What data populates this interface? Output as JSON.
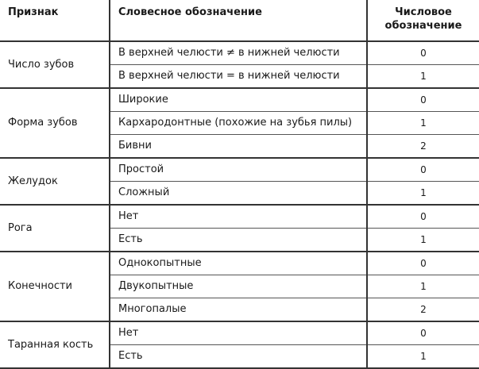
{
  "header": {
    "sign": "Признак",
    "word": "Словесное обозначение",
    "num": "Числовое обозначение"
  },
  "groups": [
    {
      "sign": "Число зубов",
      "rows": [
        {
          "word": "В верхней челюсти ≠ в нижней челюсти",
          "num": "0"
        },
        {
          "word": "В верхней челюсти = в нижней челюсти",
          "num": "1"
        }
      ]
    },
    {
      "sign": "Форма зубов",
      "rows": [
        {
          "word": "Широкие",
          "num": "0"
        },
        {
          "word": "Кархародонтные (похожие на зубья пилы)",
          "num": "1"
        },
        {
          "word": "Бивни",
          "num": "2"
        }
      ]
    },
    {
      "sign": "Желудок",
      "rows": [
        {
          "word": "Простой",
          "num": "0"
        },
        {
          "word": "Сложный",
          "num": "1"
        }
      ]
    },
    {
      "sign": "Рога",
      "rows": [
        {
          "word": "Нет",
          "num": "0"
        },
        {
          "word": "Есть",
          "num": "1"
        }
      ]
    },
    {
      "sign": "Конечности",
      "rows": [
        {
          "word": "Однокопытные",
          "num": "0"
        },
        {
          "word": "Двукопытные",
          "num": "1"
        },
        {
          "word": "Многопалые",
          "num": "2"
        }
      ]
    },
    {
      "sign": "Таранная кость",
      "rows": [
        {
          "word": "Нет",
          "num": "0"
        },
        {
          "word": "Есть",
          "num": "1"
        }
      ]
    }
  ]
}
